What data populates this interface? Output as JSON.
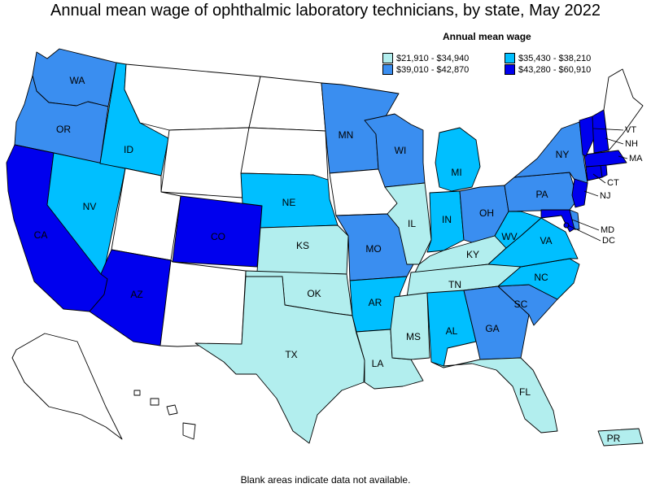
{
  "title": "Annual mean wage of ophthalmic laboratory technicians, by state, May 2022",
  "legend": {
    "title": "Annual mean wage",
    "ranges": [
      {
        "label": "$21,910 - $34,940",
        "color": "#b2eeee"
      },
      {
        "label": "$35,430 - $38,210",
        "color": "#00bfff"
      },
      {
        "label": "$39,010 - $42,870",
        "color": "#3a8ef0"
      },
      {
        "label": "$43,280 - $60,910",
        "color": "#0000ee"
      }
    ]
  },
  "states": {
    "WA": {
      "label": "WA",
      "tier": 2
    },
    "OR": {
      "label": "OR",
      "tier": 2
    },
    "CA": {
      "label": "CA",
      "tier": 3
    },
    "NV": {
      "label": "NV",
      "tier": 1
    },
    "ID": {
      "label": "ID",
      "tier": 1
    },
    "MT": {
      "label": "",
      "tier": null
    },
    "WY": {
      "label": "",
      "tier": null
    },
    "UT": {
      "label": "",
      "tier": null
    },
    "AZ": {
      "label": "AZ",
      "tier": 3
    },
    "CO": {
      "label": "CO",
      "tier": 3
    },
    "NM": {
      "label": "",
      "tier": null
    },
    "ND": {
      "label": "",
      "tier": null
    },
    "SD": {
      "label": "",
      "tier": null
    },
    "NE": {
      "label": "NE",
      "tier": 1
    },
    "KS": {
      "label": "KS",
      "tier": 0
    },
    "OK": {
      "label": "OK",
      "tier": 0
    },
    "TX": {
      "label": "TX",
      "tier": 0
    },
    "MN": {
      "label": "MN",
      "tier": 2
    },
    "IA": {
      "label": "",
      "tier": null
    },
    "MO": {
      "label": "MO",
      "tier": 2
    },
    "AR": {
      "label": "AR",
      "tier": 1
    },
    "LA": {
      "label": "LA",
      "tier": 0
    },
    "WI": {
      "label": "WI",
      "tier": 2
    },
    "IL": {
      "label": "IL",
      "tier": 0
    },
    "MI": {
      "label": "MI",
      "tier": 1
    },
    "IN": {
      "label": "IN",
      "tier": 1
    },
    "OH": {
      "label": "OH",
      "tier": 2
    },
    "KY": {
      "label": "KY",
      "tier": 0
    },
    "TN": {
      "label": "TN",
      "tier": 0
    },
    "MS": {
      "label": "MS",
      "tier": 0
    },
    "AL": {
      "label": "AL",
      "tier": 1
    },
    "GA": {
      "label": "GA",
      "tier": 2
    },
    "FL": {
      "label": "FL",
      "tier": 0
    },
    "SC": {
      "label": "SC",
      "tier": 2
    },
    "NC": {
      "label": "NC",
      "tier": 1
    },
    "VA": {
      "label": "VA",
      "tier": 1
    },
    "WV": {
      "label": "WV",
      "tier": 1
    },
    "PA": {
      "label": "PA",
      "tier": 2
    },
    "NY": {
      "label": "NY",
      "tier": 2
    },
    "NJ": {
      "label": "NJ",
      "tier": 3
    },
    "MD": {
      "label": "MD",
      "tier": 3
    },
    "DE": {
      "label": "",
      "tier": 2
    },
    "DC": {
      "label": "DC",
      "tier": 3
    },
    "CT": {
      "label": "CT",
      "tier": 3
    },
    "MA": {
      "label": "MA",
      "tier": 3
    },
    "VT": {
      "label": "VT",
      "tier": 3
    },
    "NH": {
      "label": "NH",
      "tier": 3
    },
    "RI": {
      "label": "",
      "tier": 3
    },
    "ME": {
      "label": "",
      "tier": null
    },
    "AK": {
      "label": "",
      "tier": null
    },
    "HI": {
      "label": "",
      "tier": null
    },
    "PR": {
      "label": "PR",
      "tier": 0
    }
  },
  "footnote": "Blank areas indicate data not available."
}
